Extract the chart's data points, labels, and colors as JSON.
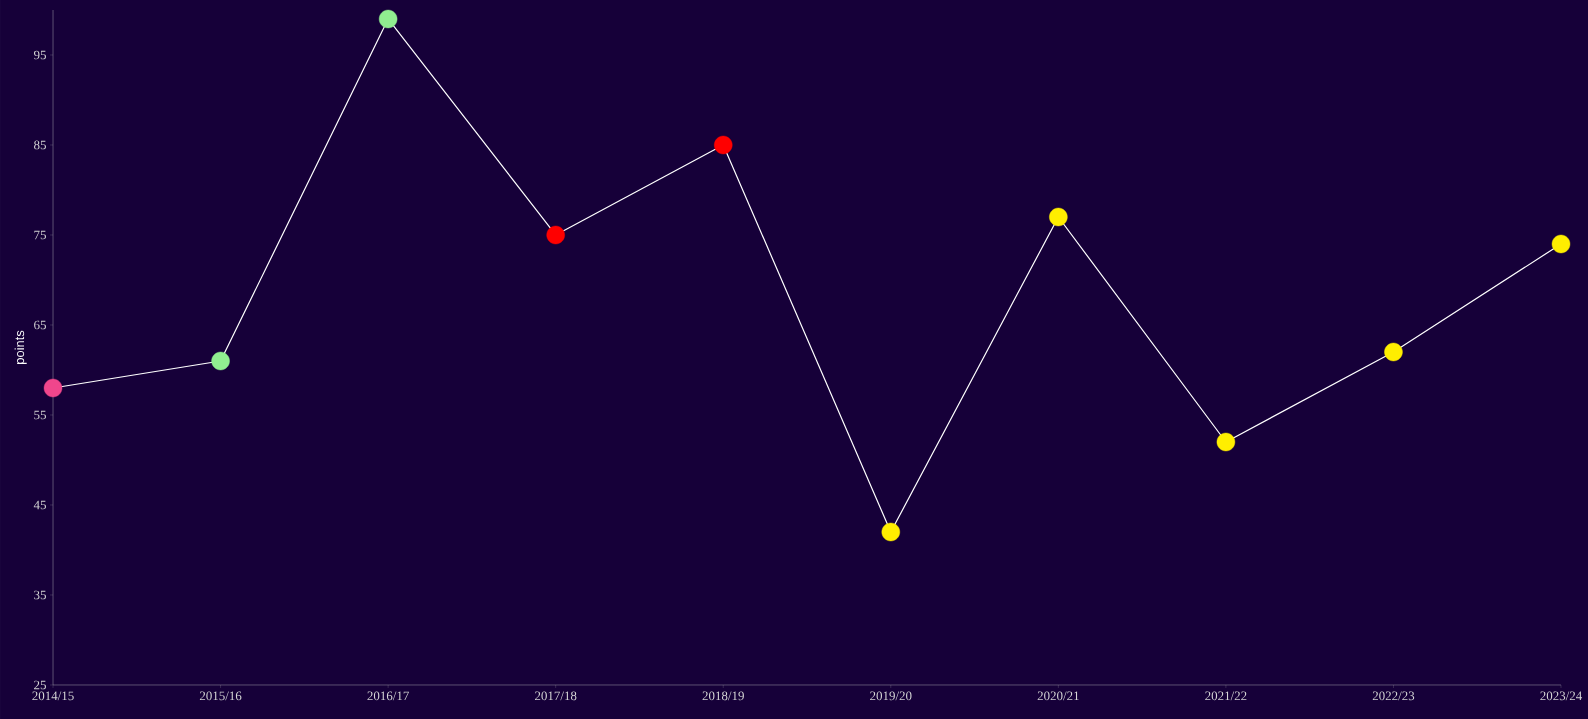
{
  "chart_data": {
    "type": "line",
    "ylabel": "points",
    "categories": [
      "2014/15",
      "2015/16",
      "2016/17",
      "2017/18",
      "2018/19",
      "2019/20",
      "2020/21",
      "2021/22",
      "2022/23",
      "2023/24"
    ],
    "series": [
      {
        "color": "#ffffff",
        "values": [
          58,
          61,
          99,
          75,
          85,
          42,
          77,
          52,
          62,
          74
        ],
        "colors": [
          "#f0468c",
          "#90ee90",
          "#90ee90",
          "#ff0000",
          "#ff0000",
          "#ffee00",
          "#ffee00",
          "#ffee00",
          "#ffee00",
          "#ffee00"
        ]
      }
    ],
    "ylim": [
      25,
      100
    ],
    "yticks": [
      25,
      35,
      45,
      55,
      65,
      75,
      85,
      95
    ],
    "marker": "circle",
    "line_style": "solid"
  }
}
